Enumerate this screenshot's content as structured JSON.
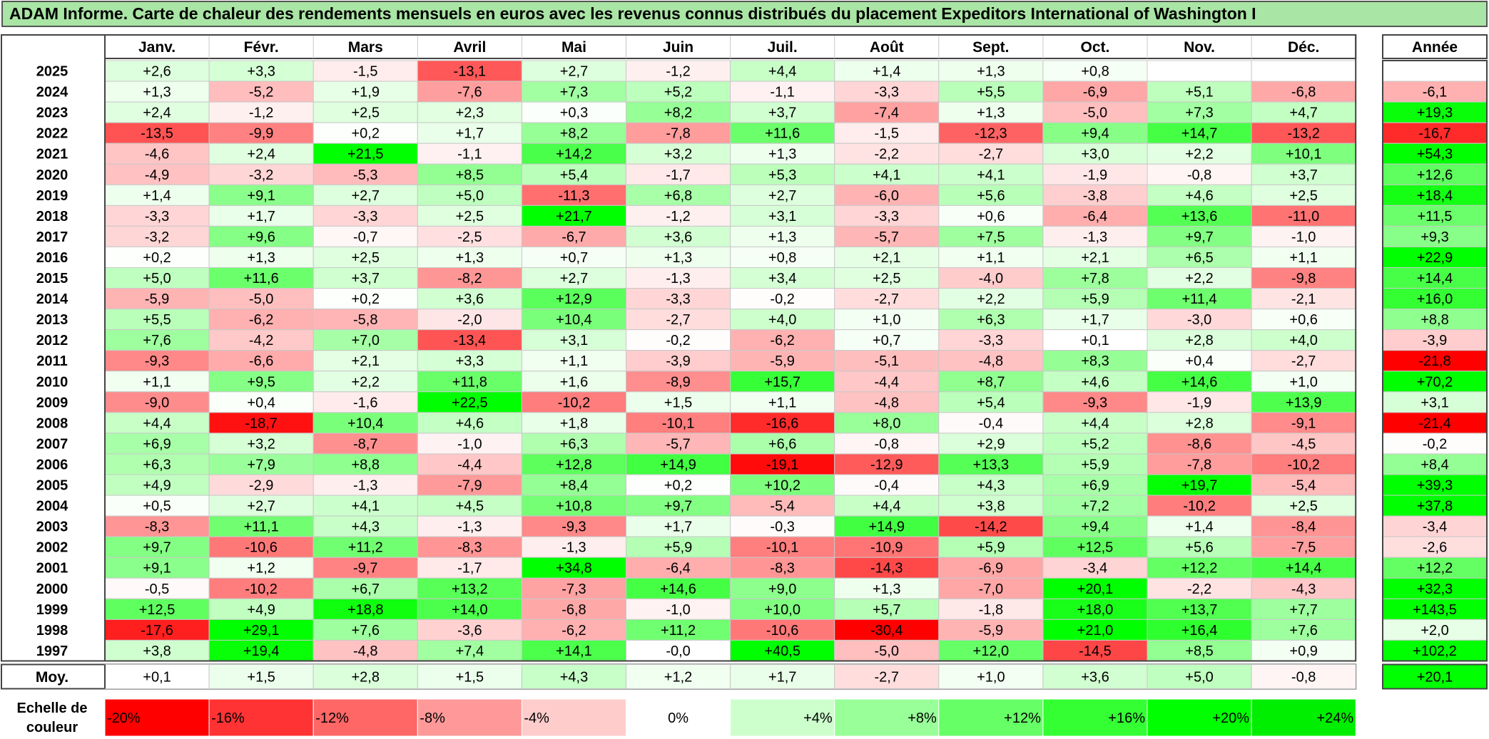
{
  "colors": {
    "title_bg": "#a9e5a4",
    "border": "#444444",
    "grid": "#c8c8c8"
  },
  "chart_data": {
    "type": "heatmap",
    "title": "ADAM Informe. Carte de chaleur des rendements mensuels en euros avec les revenus connus distribués du placement Expeditors International of Washington I",
    "months": [
      "Janv.",
      "Févr.",
      "Mars",
      "Avril",
      "Mai",
      "Juin",
      "Juil.",
      "Août",
      "Sept.",
      "Oct.",
      "Nov.",
      "Déc."
    ],
    "year_header": "Année",
    "rows": [
      {
        "year": "2025",
        "values": [
          "+2,6",
          "+3,3",
          "-1,5",
          "-13,1",
          "+2,7",
          "-1,2",
          "+4,4",
          "+1,4",
          "+1,3",
          "+0,8",
          "",
          ""
        ],
        "annual": ""
      },
      {
        "year": "2024",
        "values": [
          "+1,3",
          "-5,2",
          "+1,9",
          "-7,6",
          "+7,3",
          "+5,2",
          "-1,1",
          "-3,3",
          "+5,5",
          "-6,9",
          "+5,1",
          "-6,8"
        ],
        "annual": "-6,1"
      },
      {
        "year": "2023",
        "values": [
          "+2,4",
          "-1,2",
          "+2,5",
          "+2,3",
          "+0,3",
          "+8,2",
          "+3,7",
          "-7,4",
          "+1,3",
          "-5,0",
          "+7,3",
          "+4,7"
        ],
        "annual": "+19,3"
      },
      {
        "year": "2022",
        "values": [
          "-13,5",
          "-9,9",
          "+0,2",
          "+1,7",
          "+8,2",
          "-7,8",
          "+11,6",
          "-1,5",
          "-12,3",
          "+9,4",
          "+14,7",
          "-13,2"
        ],
        "annual": "-16,7"
      },
      {
        "year": "2021",
        "values": [
          "-4,6",
          "+2,4",
          "+21,5",
          "-1,1",
          "+14,2",
          "+3,2",
          "+1,3",
          "-2,2",
          "-2,7",
          "+3,0",
          "+2,2",
          "+10,1"
        ],
        "annual": "+54,3"
      },
      {
        "year": "2020",
        "values": [
          "-4,9",
          "-3,2",
          "-5,3",
          "+8,5",
          "+5,4",
          "-1,7",
          "+5,3",
          "+4,1",
          "+4,1",
          "-1,9",
          "-0,8",
          "+3,7"
        ],
        "annual": "+12,6"
      },
      {
        "year": "2019",
        "values": [
          "+1,4",
          "+9,1",
          "+2,7",
          "+5,0",
          "-11,3",
          "+6,8",
          "+2,7",
          "-6,0",
          "+5,6",
          "-3,8",
          "+4,6",
          "+2,5"
        ],
        "annual": "+18,4"
      },
      {
        "year": "2018",
        "values": [
          "-3,3",
          "+1,7",
          "-3,3",
          "+2,5",
          "+21,7",
          "-1,2",
          "+3,1",
          "-3,3",
          "+0,6",
          "-6,4",
          "+13,6",
          "-11,0"
        ],
        "annual": "+11,5"
      },
      {
        "year": "2017",
        "values": [
          "-3,2",
          "+9,6",
          "-0,7",
          "-2,5",
          "-6,7",
          "+3,6",
          "+1,3",
          "-5,7",
          "+7,5",
          "-1,3",
          "+9,7",
          "-1,0"
        ],
        "annual": "+9,3"
      },
      {
        "year": "2016",
        "values": [
          "+0,2",
          "+1,3",
          "+2,5",
          "+1,3",
          "+0,7",
          "+1,3",
          "+0,8",
          "+2,1",
          "+1,1",
          "+2,1",
          "+6,5",
          "+1,1"
        ],
        "annual": "+22,9"
      },
      {
        "year": "2015",
        "values": [
          "+5,0",
          "+11,6",
          "+3,7",
          "-8,2",
          "+2,7",
          "-1,3",
          "+3,4",
          "+2,5",
          "-4,0",
          "+7,8",
          "+2,2",
          "-9,8"
        ],
        "annual": "+14,4"
      },
      {
        "year": "2014",
        "values": [
          "-5,9",
          "-5,0",
          "+0,2",
          "+3,6",
          "+12,9",
          "-3,3",
          "-0,2",
          "-2,7",
          "+2,2",
          "+5,9",
          "+11,4",
          "-2,1"
        ],
        "annual": "+16,0"
      },
      {
        "year": "2013",
        "values": [
          "+5,5",
          "-6,2",
          "-5,8",
          "-2,0",
          "+10,4",
          "-2,7",
          "+4,0",
          "+1,0",
          "+6,3",
          "+1,7",
          "-3,0",
          "+0,6"
        ],
        "annual": "+8,8"
      },
      {
        "year": "2012",
        "values": [
          "+7,6",
          "-4,2",
          "+7,0",
          "-13,4",
          "+3,1",
          "-0,2",
          "-6,2",
          "+0,7",
          "-3,3",
          "+0,1",
          "+2,8",
          "+4,0"
        ],
        "annual": "-3,9"
      },
      {
        "year": "2011",
        "values": [
          "-9,3",
          "-6,6",
          "+2,1",
          "+3,3",
          "+1,1",
          "-3,9",
          "-5,9",
          "-5,1",
          "-4,8",
          "+8,3",
          "+0,4",
          "-2,7"
        ],
        "annual": "-21,8"
      },
      {
        "year": "2010",
        "values": [
          "+1,1",
          "+9,5",
          "+2,2",
          "+11,8",
          "+1,6",
          "-8,9",
          "+15,7",
          "-4,4",
          "+8,7",
          "+4,6",
          "+14,6",
          "+1,0"
        ],
        "annual": "+70,2"
      },
      {
        "year": "2009",
        "values": [
          "-9,0",
          "+0,4",
          "-1,6",
          "+22,5",
          "-10,2",
          "+1,5",
          "+1,1",
          "-4,8",
          "+5,4",
          "-9,3",
          "-1,9",
          "+13,9"
        ],
        "annual": "+3,1"
      },
      {
        "year": "2008",
        "values": [
          "+4,4",
          "-18,7",
          "+10,4",
          "+4,6",
          "+1,8",
          "-10,1",
          "-16,6",
          "+8,0",
          "-0,4",
          "+4,4",
          "+2,8",
          "-9,1"
        ],
        "annual": "-21,4"
      },
      {
        "year": "2007",
        "values": [
          "+6,9",
          "+3,2",
          "-8,7",
          "-1,0",
          "+6,3",
          "-5,7",
          "+6,6",
          "-0,8",
          "+2,9",
          "+5,2",
          "-8,6",
          "-4,5"
        ],
        "annual": "-0,2"
      },
      {
        "year": "2006",
        "values": [
          "+6,3",
          "+7,9",
          "+8,8",
          "-4,4",
          "+12,8",
          "+14,9",
          "-19,1",
          "-12,9",
          "+13,3",
          "+5,9",
          "-7,8",
          "-10,2"
        ],
        "annual": "+8,4"
      },
      {
        "year": "2005",
        "values": [
          "+4,9",
          "-2,9",
          "-1,3",
          "-7,9",
          "+8,4",
          "+0,2",
          "+10,2",
          "-0,4",
          "+4,3",
          "+6,9",
          "+19,7",
          "-5,4"
        ],
        "annual": "+39,3"
      },
      {
        "year": "2004",
        "values": [
          "+0,5",
          "+2,7",
          "+4,1",
          "+4,5",
          "+10,8",
          "+9,7",
          "-5,4",
          "+4,4",
          "+3,8",
          "+7,2",
          "-10,2",
          "+2,5"
        ],
        "annual": "+37,8"
      },
      {
        "year": "2003",
        "values": [
          "-8,3",
          "+11,1",
          "+4,3",
          "-1,3",
          "-9,3",
          "+1,7",
          "-0,3",
          "+14,9",
          "-14,2",
          "+9,4",
          "+1,4",
          "-8,4"
        ],
        "annual": "-3,4"
      },
      {
        "year": "2002",
        "values": [
          "+9,7",
          "-10,6",
          "+11,2",
          "-8,3",
          "-1,3",
          "+5,9",
          "-10,1",
          "-10,9",
          "+5,9",
          "+12,5",
          "+5,6",
          "-7,5"
        ],
        "annual": "-2,6"
      },
      {
        "year": "2001",
        "values": [
          "+9,1",
          "+1,2",
          "-9,7",
          "-1,7",
          "+34,8",
          "-6,4",
          "-8,3",
          "-14,3",
          "-6,9",
          "-3,4",
          "+12,2",
          "+14,4"
        ],
        "annual": "+12,2"
      },
      {
        "year": "2000",
        "values": [
          "-0,5",
          "-10,2",
          "+6,7",
          "+13,2",
          "-7,3",
          "+14,6",
          "+9,0",
          "+1,3",
          "-7,0",
          "+20,1",
          "-2,2",
          "-4,3"
        ],
        "annual": "+32,3"
      },
      {
        "year": "1999",
        "values": [
          "+12,5",
          "+4,9",
          "+18,8",
          "+14,0",
          "-6,8",
          "-1,0",
          "+10,0",
          "+5,7",
          "-1,8",
          "+18,0",
          "+13,7",
          "+7,7"
        ],
        "annual": "+143,5"
      },
      {
        "year": "1998",
        "values": [
          "-17,6",
          "+29,1",
          "+7,6",
          "-3,6",
          "-6,2",
          "+11,2",
          "-10,6",
          "-30,4",
          "-5,9",
          "+21,0",
          "+16,4",
          "+7,6"
        ],
        "annual": "+2,0"
      },
      {
        "year": "1997",
        "values": [
          "+3,8",
          "+19,4",
          "-4,8",
          "+7,4",
          "+14,1",
          "-0,0",
          "+40,5",
          "-5,0",
          "+12,0",
          "-14,5",
          "+8,5",
          "+0,9"
        ],
        "annual": "+102,2"
      }
    ],
    "average": {
      "label": "Moy.",
      "values": [
        "+0,1",
        "+1,5",
        "+2,8",
        "+1,5",
        "+4,3",
        "+1,2",
        "+1,7",
        "-2,7",
        "+1,0",
        "+3,6",
        "+5,0",
        "-0,8"
      ],
      "annual": "+20,1"
    },
    "color_scale": {
      "label_line1": "Echelle de",
      "label_line2": "couleur",
      "stops": [
        {
          "value": -20,
          "label": "-20%",
          "color": "#ff0000"
        },
        {
          "value": -16,
          "label": "-16%",
          "color": "#ff3333"
        },
        {
          "value": -12,
          "label": "-12%",
          "color": "#ff6666"
        },
        {
          "value": -8,
          "label": "-8%",
          "color": "#ff9999"
        },
        {
          "value": -4,
          "label": "-4%",
          "color": "#ffcccc"
        },
        {
          "value": 0,
          "label": "0%",
          "color": "#ffffff"
        },
        {
          "value": 4,
          "label": "+4%",
          "color": "#ccffcc"
        },
        {
          "value": 8,
          "label": "+8%",
          "color": "#99ff99"
        },
        {
          "value": 12,
          "label": "+12%",
          "color": "#66ff66"
        },
        {
          "value": 16,
          "label": "+16%",
          "color": "#33ff33"
        },
        {
          "value": 20,
          "label": "+20%",
          "color": "#00ff00"
        },
        {
          "value": 24,
          "label": "+24%",
          "color": "#00ee00"
        }
      ]
    }
  }
}
